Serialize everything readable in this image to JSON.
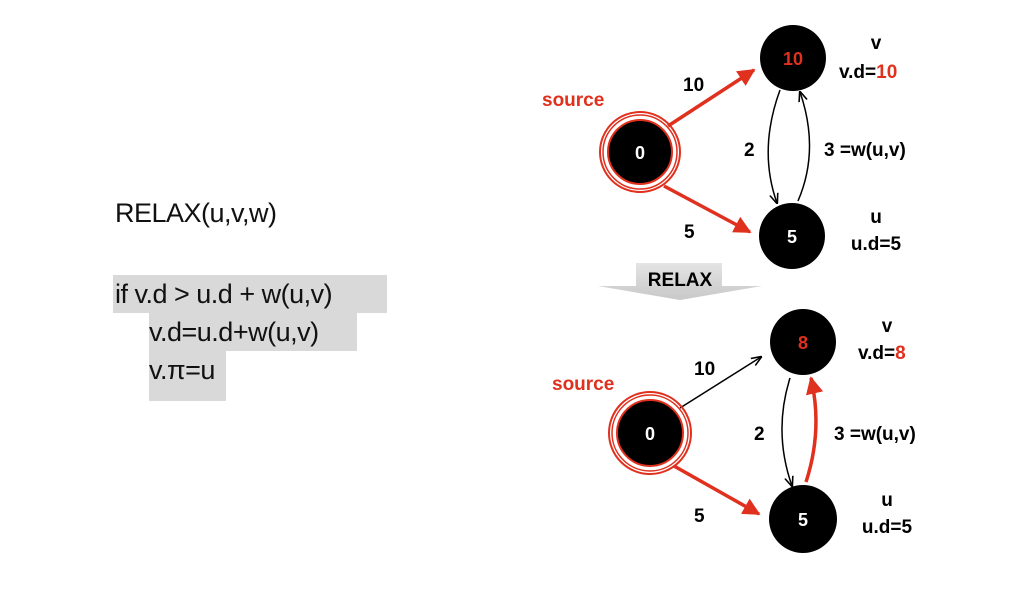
{
  "code": {
    "title": "RELAX(u,v,w)",
    "line1": "if v.d > u.d + w(u,v)",
    "line2": "v.d=u.d+w(u,v)",
    "line3": "v.π=u"
  },
  "transition_label": "RELAX",
  "graph_before": {
    "source_label": "source",
    "node_source": "0",
    "node_v": "10",
    "node_u": "5",
    "v_name": "v",
    "v_d_prefix": "v.d=",
    "v_d_value": "10",
    "u_name": "u",
    "u_d": "u.d=5",
    "edge_source_v": "10",
    "edge_source_u": "5",
    "edge_v_u": "2",
    "edge_u_v": "3 =w(u,v)"
  },
  "graph_after": {
    "source_label": "source",
    "node_source": "0",
    "node_v": "8",
    "node_u": "5",
    "v_name": "v",
    "v_d_prefix": "v.d=",
    "v_d_value": "8",
    "u_name": "u",
    "u_d": "u.d=5",
    "edge_source_v": "10",
    "edge_source_u": "5",
    "edge_v_u": "2",
    "edge_u_v": "3 =w(u,v)"
  },
  "colors": {
    "highlight_red": "#e0301e",
    "node_fill": "#000000",
    "code_highlight": "#d9d9d9"
  }
}
